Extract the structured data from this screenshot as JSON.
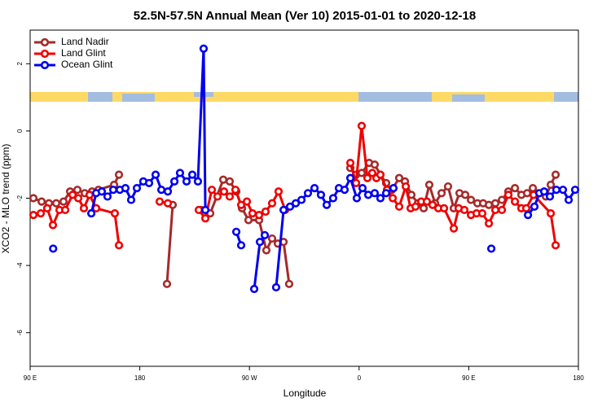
{
  "chart_data": {
    "type": "line",
    "title": "52.5N-57.5N Annual Mean (Ver 10)   2015-01-01 to 2020-12-18",
    "x_label": "Longitude",
    "y_label": "XCO2 - MLO trend (ppm)",
    "xlim": [
      90,
      540
    ],
    "ylim": [
      -7,
      3
    ],
    "xticks": [
      {
        "value": 90,
        "label": "90 E"
      },
      180,
      {
        "value": 270,
        "label": "90 W"
      },
      {
        "value": 360,
        "label": "0"
      },
      {
        "value": 450,
        "label": "90 E"
      },
      {
        "value": 540,
        "label": "180"
      }
    ],
    "yticks": [
      -6,
      -4,
      -2,
      0,
      2
    ],
    "legend": "upper left",
    "series": [
      {
        "name": "Land Nadir",
        "color": "#a52a2a",
        "x": [
          92.7,
          99.4,
          105.4,
          111.4,
          117.4,
          122.8,
          128.8,
          134.8,
          140.8,
          146.1,
          158.9,
          162.9,
          null,
          202.3,
          207,
          null,
          230.4,
          237.8,
          248.5,
          253.8,
          259.2,
          263.9,
          269.2,
          277.9,
          283.9,
          288.6,
          293.3,
          298,
          302.6,
          null,
          352.8,
          357.5,
          362.1,
          368.2,
          372.8,
          377.5,
          382.2,
          386.9,
          392.9,
          397.6,
          402.9,
          408.3,
          413,
          417.6,
          422.3,
          427.7,
          433,
          437.7,
          442.4,
          447.1,
          451.8,
          457.1,
          461.8,
          466.5,
          471.8,
          477.2,
          482.5,
          487.9,
          493.2,
          497.9,
          502.6,
          513.3,
          517.3,
          521.3
        ],
        "values": [
          -2.0,
          -2.1,
          -2.15,
          -2.15,
          -2.1,
          -1.8,
          -1.75,
          -1.85,
          -1.8,
          -1.75,
          -1.6,
          -1.3,
          null,
          -4.55,
          -2.2,
          null,
          -2.35,
          -2.45,
          -1.45,
          -1.5,
          -1.8,
          -2.3,
          -2.65,
          -2.65,
          -3.55,
          -3.2,
          -3.35,
          -3.3,
          -4.55,
          null,
          -1.1,
          -1.3,
          -1.25,
          -0.95,
          -1.0,
          -1.3,
          -1.55,
          -1.75,
          -1.4,
          -1.5,
          -1.9,
          -2.15,
          -2.3,
          -1.6,
          -2.15,
          -1.85,
          -1.65,
          -2.3,
          -1.85,
          -1.9,
          -2.05,
          -2.15,
          -2.15,
          -2.2,
          -2.15,
          -2.05,
          -1.8,
          -1.7,
          -1.9,
          -1.85,
          -1.7,
          -1.95,
          -1.6,
          -1.3
        ]
      },
      {
        "name": "Land Glint",
        "color": "#ee0000",
        "x": [
          92.7,
          98.7,
          104,
          108.7,
          114.1,
          118.8,
          124.8,
          129.5,
          134.1,
          138.8,
          144.2,
          159.5,
          162.9,
          null,
          196.3,
          203,
          null,
          228.4,
          233.8,
          239.1,
          243.8,
          249.1,
          253.8,
          258.5,
          263.2,
          267.9,
          272.5,
          277.9,
          283.2,
          288.6,
          293.9,
          299.3,
          null,
          352.8,
          357.5,
          362.1,
          366.8,
          370.8,
          374.2,
          377.5,
          382.9,
          387.6,
          392.9,
          398.3,
          402.3,
          406.3,
          411,
          415.6,
          420.3,
          425,
          429.7,
          437.7,
          441.7,
          446.4,
          451.8,
          456.4,
          461.1,
          466.5,
          471.8,
          477.2,
          482.5,
          487.9,
          493.2,
          497.2,
          503.2,
          517.3,
          521.3
        ],
        "values": [
          -2.5,
          -2.45,
          -2.3,
          -2.8,
          -2.35,
          -2.35,
          -1.9,
          -2.0,
          -2.3,
          -1.9,
          -2.3,
          -2.45,
          -3.4,
          null,
          -2.1,
          -2.15,
          null,
          -2.35,
          -2.6,
          -1.75,
          -1.95,
          -1.8,
          -1.95,
          -1.75,
          -2.2,
          -2.1,
          -2.45,
          -2.5,
          -2.4,
          -2.15,
          -1.8,
          -2.35,
          null,
          -0.95,
          -1.55,
          0.15,
          -1.4,
          -1.25,
          -1.4,
          -1.3,
          -1.75,
          -2.0,
          -2.25,
          -1.65,
          -2.3,
          -2.25,
          -2.1,
          -2.1,
          -2.2,
          -2.3,
          -2.3,
          -2.9,
          -2.3,
          -2.35,
          -2.5,
          -2.45,
          -2.45,
          -2.75,
          -2.35,
          -2.35,
          -1.9,
          -2.1,
          -2.3,
          -2.3,
          -1.9,
          -2.45,
          -3.4
        ]
      },
      {
        "name": "Ocean Glint",
        "color": "#0000ee",
        "x": [
          108.9,
          null,
          140.2,
          144.2,
          148.8,
          153.5,
          158.2,
          163.6,
          168.2,
          172.9,
          177.6,
          182.9,
          187.6,
          193,
          197.7,
          203,
          208.4,
          213,
          218.4,
          223.1,
          227.7,
          232.4,
          233.8,
          null,
          259.2,
          263.2,
          null,
          273.9,
          278.6,
          282.6,
          null,
          291.9,
          298,
          303.3,
          308,
          312.7,
          318,
          323.4,
          328.7,
          333.4,
          338.7,
          343.4,
          348.1,
          352.8,
          358.1,
          362.8,
          367.5,
          372.8,
          377.5,
          382.2,
          388.2,
          null,
          468.5,
          null,
          498.6,
          503.9,
          507.9,
          511.9,
          516.6,
          521.9,
          527.3,
          532,
          537.3
        ],
        "values": [
          -3.5,
          null,
          -2.45,
          -1.85,
          -1.8,
          -1.95,
          -1.75,
          -1.75,
          -1.7,
          -2.05,
          -1.7,
          -1.5,
          -1.55,
          -1.3,
          -1.75,
          -1.8,
          -1.5,
          -1.25,
          -1.5,
          -1.3,
          -1.5,
          2.45,
          -2.35,
          null,
          -3.0,
          -3.4,
          null,
          -4.7,
          -3.3,
          -3.1,
          null,
          -4.65,
          -2.35,
          -2.25,
          -2.15,
          -2.05,
          -1.85,
          -1.7,
          -1.9,
          -2.2,
          -2.0,
          -1.7,
          -1.75,
          -1.4,
          -2.0,
          -1.7,
          -1.9,
          -1.85,
          -2.0,
          -1.85,
          -1.7,
          null,
          -3.5,
          null,
          -2.5,
          -2.25,
          -1.85,
          -1.8,
          -1.95,
          -1.75,
          -1.75,
          -2.05,
          -1.75
        ]
      }
    ]
  }
}
